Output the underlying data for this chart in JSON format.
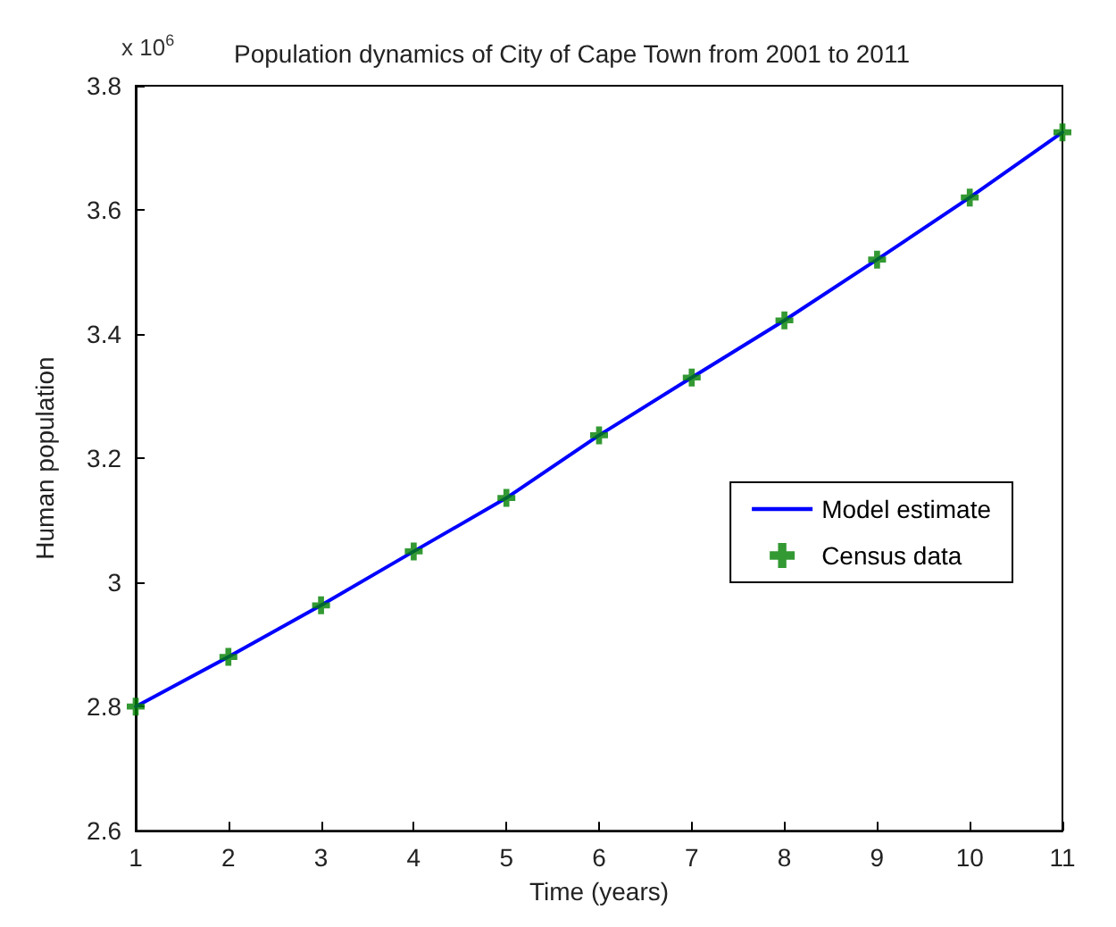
{
  "chart_data": {
    "type": "line",
    "title": "Population dynamics of City of Cape Town from 2001 to 2011",
    "xlabel": "Time (years)",
    "ylabel": "Human population",
    "annotations": [
      "x 10$^{6}$"
    ],
    "x": [
      1,
      2,
      3,
      4,
      5,
      6,
      7,
      8,
      9,
      10,
      11
    ],
    "xlim": [
      1,
      11
    ],
    "xticks": [
      1,
      2,
      3,
      4,
      5,
      6,
      7,
      8,
      9,
      10,
      11
    ],
    "ylim": [
      2.6,
      3.8
    ],
    "yticks": [
      2.6,
      2.8,
      3,
      3.2,
      3.4,
      3.6,
      3.8
    ],
    "grid": false,
    "legend": "right",
    "series": [
      {
        "name": "Model estimate",
        "color": "#0000ff",
        "marker": "none",
        "line_style": "solid",
        "values": [
          2.8,
          2.88,
          2.963,
          3.05,
          3.136,
          3.237,
          3.33,
          3.422,
          3.52,
          3.62,
          3.725
        ]
      },
      {
        "name": "Census data",
        "type": "scatter",
        "color": "#008000",
        "marker": "cross",
        "values": [
          2.8,
          2.88,
          2.963,
          3.05,
          3.136,
          3.237,
          3.33,
          3.422,
          3.52,
          3.62,
          3.725
        ]
      }
    ]
  }
}
